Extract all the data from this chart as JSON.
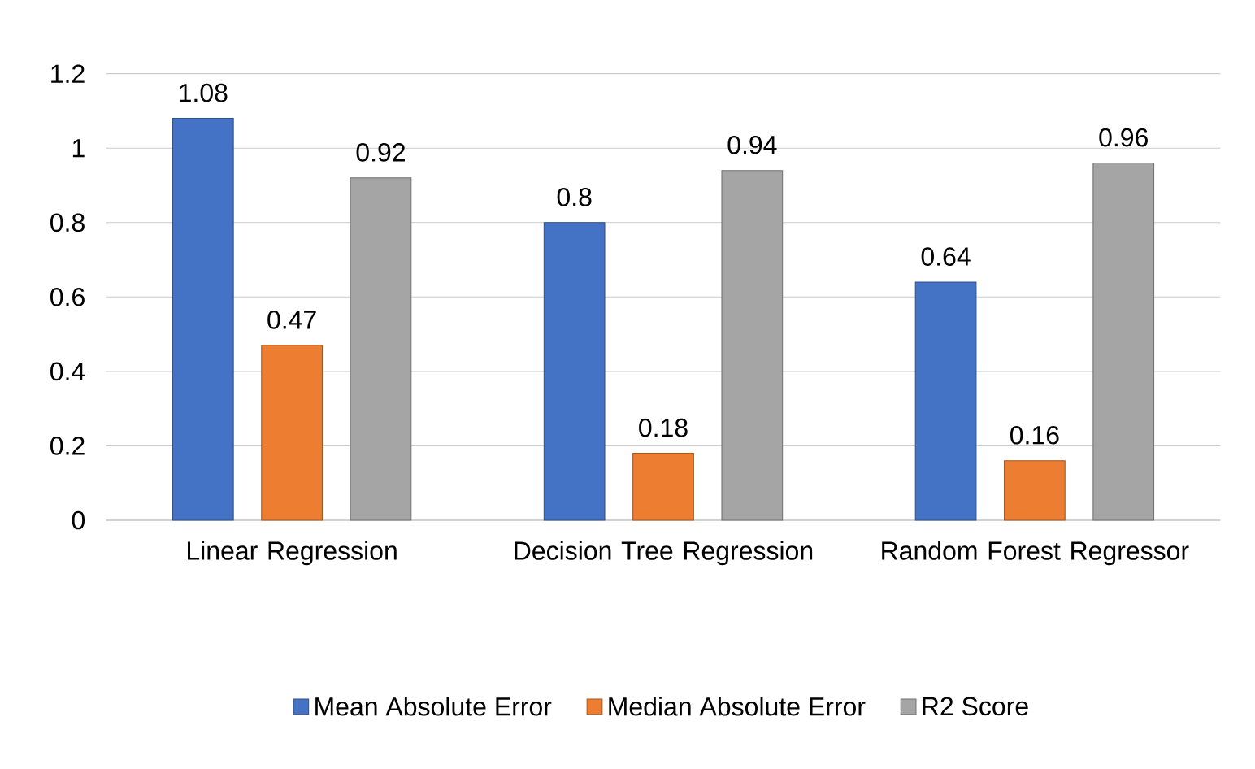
{
  "chart_data": {
    "type": "bar",
    "categories": [
      "Linear Regression",
      "Decision Tree Regression",
      "Random Forest Regressor"
    ],
    "series": [
      {
        "name": "Mean Absolute Error",
        "color": "#4472c4",
        "values": [
          1.08,
          0.8,
          0.64
        ]
      },
      {
        "name": "Median Absolute Error",
        "color": "#ed7d31",
        "values": [
          0.47,
          0.18,
          0.16
        ]
      },
      {
        "name": "R2 Score",
        "color": "#a5a5a5",
        "values": [
          0.92,
          0.94,
          0.96
        ]
      }
    ],
    "ylim": [
      0,
      1.2
    ],
    "yticks": [
      0,
      0.2,
      0.4,
      0.6,
      0.8,
      1,
      1.2
    ],
    "grid": "y",
    "legend": "bottom",
    "data_labels": true
  }
}
